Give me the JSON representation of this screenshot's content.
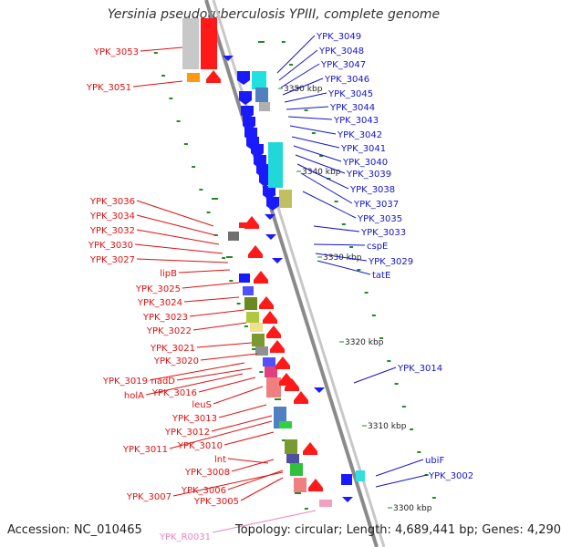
{
  "title": "Yersinia pseudotuberculosis YPIII, complete genome",
  "footer": {
    "accession": "Accession: NC_010465",
    "topology": "Topology: circular; Length: 4,689,441 bp; Genes: 4,290"
  },
  "colors": {
    "left_label": "#e01010",
    "right_label": "#1414cc",
    "rna_label": "#f080c0",
    "backbone": "#8a8a8a",
    "tick": "#228b22",
    "forward_gene": "#ff1a1a",
    "reverse_gene": "#1a1aff"
  },
  "ruler": [
    {
      "text": "3350 kbp"
    },
    {
      "text": "3340 kbp"
    },
    {
      "text": "3330 kbp"
    },
    {
      "text": "3320 kbp"
    },
    {
      "text": "3310 kbp"
    },
    {
      "text": "3300 kbp"
    }
  ],
  "left_labels": [
    {
      "text": "YPK_3053"
    },
    {
      "text": "YPK_3051"
    },
    {
      "text": "YPK_3036"
    },
    {
      "text": "YPK_3034"
    },
    {
      "text": "YPK_3032"
    },
    {
      "text": "YPK_3030"
    },
    {
      "text": "YPK_3027"
    },
    {
      "text": "lipB"
    },
    {
      "text": "YPK_3025"
    },
    {
      "text": "YPK_3024"
    },
    {
      "text": "YPK_3023"
    },
    {
      "text": "YPK_3022"
    },
    {
      "text": "YPK_3021"
    },
    {
      "text": "YPK_3020"
    },
    {
      "text": "YPK_3019"
    },
    {
      "text": "nadD"
    },
    {
      "text": "holA"
    },
    {
      "text": "YPK_3016"
    },
    {
      "text": "leuS"
    },
    {
      "text": "YPK_3013"
    },
    {
      "text": "YPK_3012"
    },
    {
      "text": "YPK_3011"
    },
    {
      "text": "YPK_3010"
    },
    {
      "text": "lnt"
    },
    {
      "text": "YPK_3008"
    },
    {
      "text": "YPK_3006"
    },
    {
      "text": "YPK_3007"
    },
    {
      "text": "YPK_3005"
    }
  ],
  "right_labels": [
    {
      "text": "YPK_3049"
    },
    {
      "text": "YPK_3048"
    },
    {
      "text": "YPK_3047"
    },
    {
      "text": "YPK_3046"
    },
    {
      "text": "YPK_3045"
    },
    {
      "text": "YPK_3044"
    },
    {
      "text": "YPK_3043"
    },
    {
      "text": "YPK_3042"
    },
    {
      "text": "YPK_3041"
    },
    {
      "text": "YPK_3040"
    },
    {
      "text": "YPK_3039"
    },
    {
      "text": "YPK_3038"
    },
    {
      "text": "YPK_3037"
    },
    {
      "text": "YPK_3035"
    },
    {
      "text": "YPK_3033"
    },
    {
      "text": "cspE"
    },
    {
      "text": "YPK_3029"
    },
    {
      "text": "tatE"
    },
    {
      "text": "YPK_3014"
    },
    {
      "text": "ubiF"
    },
    {
      "text": "YPK_3002"
    }
  ],
  "rna_labels": [
    {
      "text": "YPK_R0031"
    }
  ]
}
